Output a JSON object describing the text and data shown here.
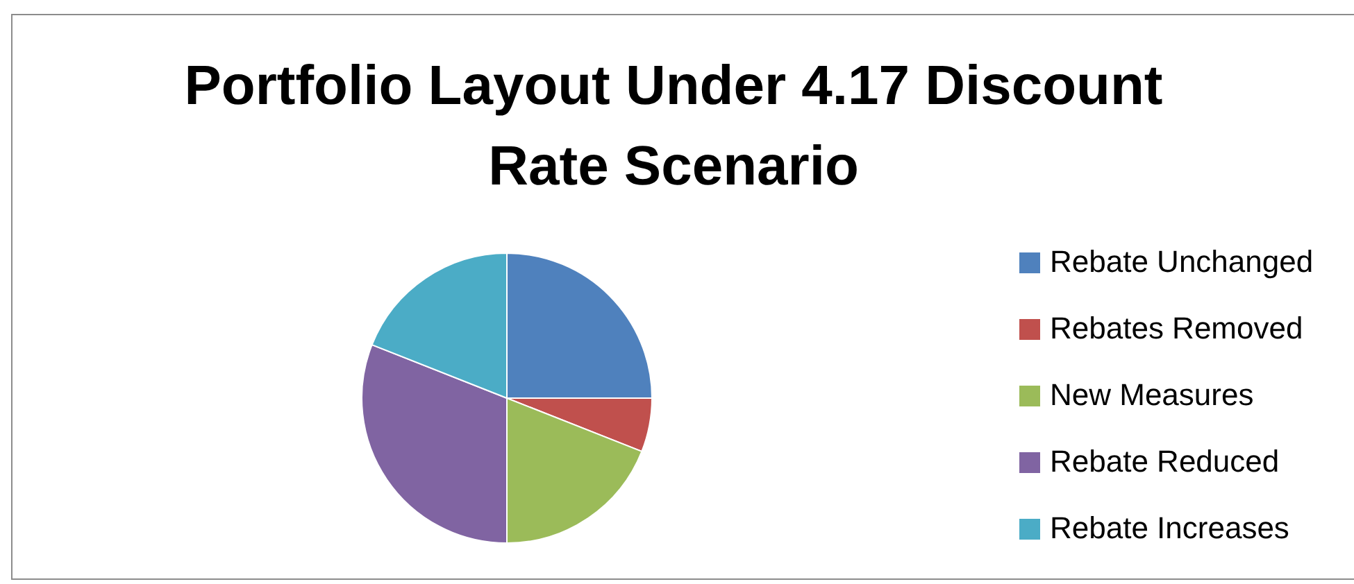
{
  "chart_data": {
    "type": "pie",
    "title": "Portfolio Layout Under 4.17 Discount Rate Scenario",
    "categories": [
      "Rebate Unchanged",
      "Rebates Removed",
      "New Measures",
      "Rebate Reduced",
      "Rebate Increases"
    ],
    "values": [
      25,
      6,
      19,
      31,
      19
    ],
    "colors": [
      "#4f81bd",
      "#c0504d",
      "#9bbb59",
      "#8064a2",
      "#4bacc6"
    ],
    "legend": "right"
  }
}
